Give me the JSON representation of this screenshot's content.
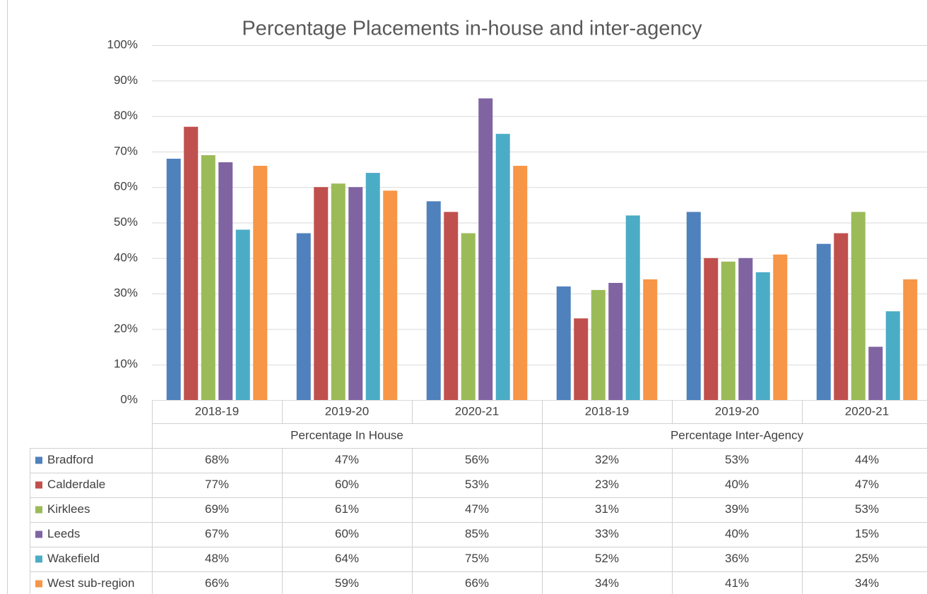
{
  "chart_data": {
    "type": "bar",
    "title": "Percentage Placements in-house and inter-agency",
    "groups": [
      {
        "name": "Percentage In House",
        "categories": [
          "2018-19",
          "2019-20",
          "2020-21"
        ]
      },
      {
        "name": "Percentage Inter-Agency",
        "categories": [
          "2018-19",
          "2019-20",
          "2020-21"
        ]
      }
    ],
    "series": [
      {
        "name": "Bradford",
        "color": "#4f81bd",
        "values": [
          68,
          47,
          56,
          32,
          53,
          44
        ],
        "value_labels": [
          "68%",
          "47%",
          "56%",
          "32%",
          "53%",
          "44%"
        ]
      },
      {
        "name": "Calderdale",
        "color": "#c0504d",
        "values": [
          77,
          60,
          53,
          23,
          40,
          47
        ],
        "value_labels": [
          "77%",
          "60%",
          "53%",
          "23%",
          "40%",
          "47%"
        ]
      },
      {
        "name": "Kirklees",
        "color": "#9bbb59",
        "values": [
          69,
          61,
          47,
          31,
          39,
          53
        ],
        "value_labels": [
          "69%",
          "61%",
          "47%",
          "31%",
          "39%",
          "53%"
        ]
      },
      {
        "name": "Leeds",
        "color": "#8064a2",
        "values": [
          67,
          60,
          85,
          33,
          40,
          15
        ],
        "value_labels": [
          "67%",
          "60%",
          "85%",
          "33%",
          "40%",
          "15%"
        ]
      },
      {
        "name": "Wakefield",
        "color": "#4bacc6",
        "values": [
          48,
          64,
          75,
          52,
          36,
          25
        ],
        "value_labels": [
          "48%",
          "64%",
          "75%",
          "52%",
          "36%",
          "25%"
        ]
      },
      {
        "name": "West sub-region",
        "color": "#f79646",
        "values": [
          66,
          59,
          66,
          34,
          41,
          34
        ],
        "value_labels": [
          "66%",
          "59%",
          "66%",
          "34%",
          "41%",
          "34%"
        ]
      }
    ],
    "ylim": [
      0,
      100
    ],
    "yticks": [
      {
        "value": 0,
        "label": "0%"
      },
      {
        "value": 10,
        "label": "10%"
      },
      {
        "value": 20,
        "label": "20%"
      },
      {
        "value": 30,
        "label": "30%"
      },
      {
        "value": 40,
        "label": "40%"
      },
      {
        "value": 50,
        "label": "50%"
      },
      {
        "value": 60,
        "label": "60%"
      },
      {
        "value": 70,
        "label": "70%"
      },
      {
        "value": 80,
        "label": "80%"
      },
      {
        "value": 90,
        "label": "90%"
      },
      {
        "value": 100,
        "label": "100%"
      }
    ],
    "grid": true
  }
}
